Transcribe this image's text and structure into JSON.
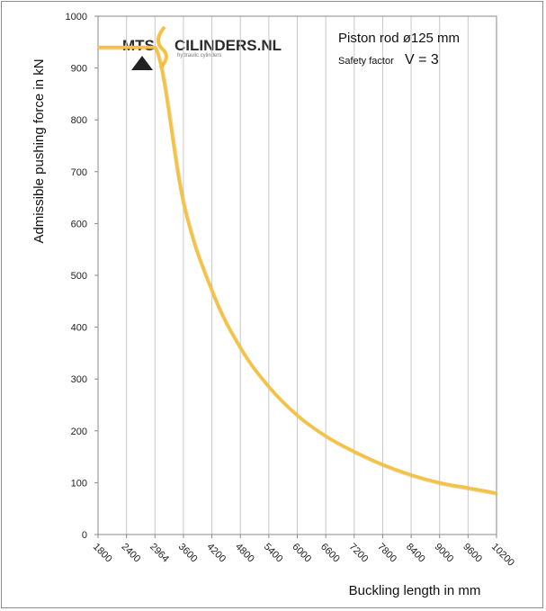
{
  "chart_data": {
    "type": "line",
    "title": "",
    "xlabel": "Buckling length in mm",
    "ylabel": "Admissible pushing force in kN",
    "x_ticks": [
      1800,
      2400,
      2964,
      3600,
      4200,
      4800,
      5400,
      6000,
      6600,
      7200,
      7800,
      8400,
      9000,
      9600,
      10200
    ],
    "y_ticks": [
      0,
      100,
      200,
      300,
      400,
      500,
      600,
      700,
      800,
      900,
      1000
    ],
    "ylim": [
      0,
      1000
    ],
    "grid": {
      "vertical": true,
      "horizontal": false
    },
    "series": [
      {
        "name": "",
        "color": "#f6c244",
        "x": [
          1800,
          2400,
          2964,
          3600,
          4200,
          4800,
          5400,
          6000,
          6600,
          7200,
          7800,
          8400,
          9000,
          9600,
          10200
        ],
        "y": [
          940,
          940,
          940,
          640,
          470,
          360,
          285,
          230,
          190,
          160,
          135,
          115,
          100,
          90,
          80
        ]
      }
    ],
    "annotations": {
      "line1": "Piston rod ø125 mm",
      "safety_label": "Safety factor",
      "safety_value": "V = 3"
    }
  },
  "logo": {
    "left_text": "MTS",
    "right_text": "CILINDERS.NL",
    "subtitle": "hydraulic cylinders"
  }
}
